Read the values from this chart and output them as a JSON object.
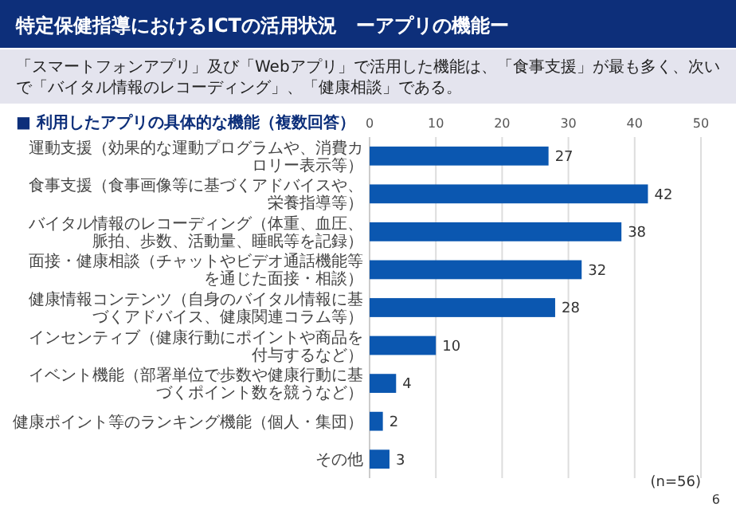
{
  "chart_data": {
    "type": "bar",
    "orientation": "horizontal",
    "title": "特定保健指導におけるICTの活用状況　ーアプリの機能ー",
    "subtitle": "「スマートフォンアプリ」及び「Webアプリ」で活用した機能は、「食事支援」が最も多く、次いで「バイタル情報のレコーディング」、「健康相談」である。",
    "categories": [
      "運動支援（効果的な運動プログラムや、消費カロリー表示等）",
      "食事支援（食事画像等に基づくアドバイスや、栄養指導等）",
      "バイタル情報のレコーディング（体重、血圧、脈拍、歩数、活動量、睡眠等を記録）",
      "面接・健康相談（チャットやビデオ通話機能等を通じた面接・相談）",
      "健康情報コンテンツ（自身のバイタル情報に基づくアドバイス、健康関連コラム等）",
      "インセンティブ（健康行動にポイントや商品を付与するなど）",
      "イベント機能（部署単位で歩数や健康行動に基づくポイント数を競うなど）",
      "健康ポイント等のランキング機能（個人・集団）",
      "その他"
    ],
    "values": [
      27,
      42,
      38,
      32,
      28,
      10,
      4,
      2,
      3
    ],
    "color": "#0b57b0",
    "xlim": [
      0,
      50
    ],
    "xticks": [
      0,
      10,
      20,
      30,
      40,
      50
    ],
    "grid": "x",
    "data_labels": true,
    "annotations": [
      "■ 利用したアプリの具体的な機能（複数回答）",
      "(n=56)",
      "6"
    ]
  }
}
